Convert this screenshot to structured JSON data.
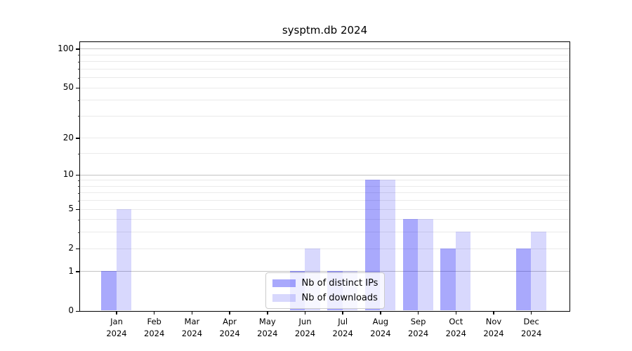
{
  "chart_data": {
    "type": "bar",
    "title": "sysptm.db 2024",
    "categories": [
      "Jan",
      "Feb",
      "Mar",
      "Apr",
      "May",
      "Jun",
      "Jul",
      "Aug",
      "Sep",
      "Oct",
      "Nov",
      "Dec"
    ],
    "x_sublabel": "2024",
    "series": [
      {
        "name": "Nb of distinct IPs",
        "color": "rgba(10,10,245,0.35)",
        "values": [
          1,
          0,
          0,
          0,
          0,
          1,
          1,
          9,
          4,
          2,
          0,
          2
        ]
      },
      {
        "name": "Nb of downloads",
        "color": "rgba(10,10,245,0.16)",
        "values": [
          5,
          0,
          0,
          0,
          0,
          2,
          1,
          9,
          4,
          3,
          0,
          3
        ]
      }
    ],
    "xlabel": "",
    "ylabel": "",
    "yscale": "log1p",
    "ylim": [
      0,
      113
    ],
    "yticks": [
      0,
      1,
      2,
      5,
      10,
      20,
      50,
      100
    ],
    "ytick_labels": [
      "0",
      "1",
      "2",
      "5",
      "10",
      "20",
      "50",
      "100"
    ],
    "major_grid_yticks": [
      1,
      10,
      100
    ],
    "minor_yticks": [
      3,
      4,
      6,
      7,
      8,
      9,
      15,
      30,
      40,
      60,
      70,
      80,
      90
    ],
    "grid": true,
    "legend_position": "lower center"
  },
  "colors": {
    "background": "#ffffff",
    "axis": "#000000",
    "major_grid": "#c3c3c3",
    "minor_grid": "#eaeaea",
    "bar_dark": "rgba(10,10,245,0.35)",
    "bar_light": "rgba(10,10,245,0.16)"
  }
}
